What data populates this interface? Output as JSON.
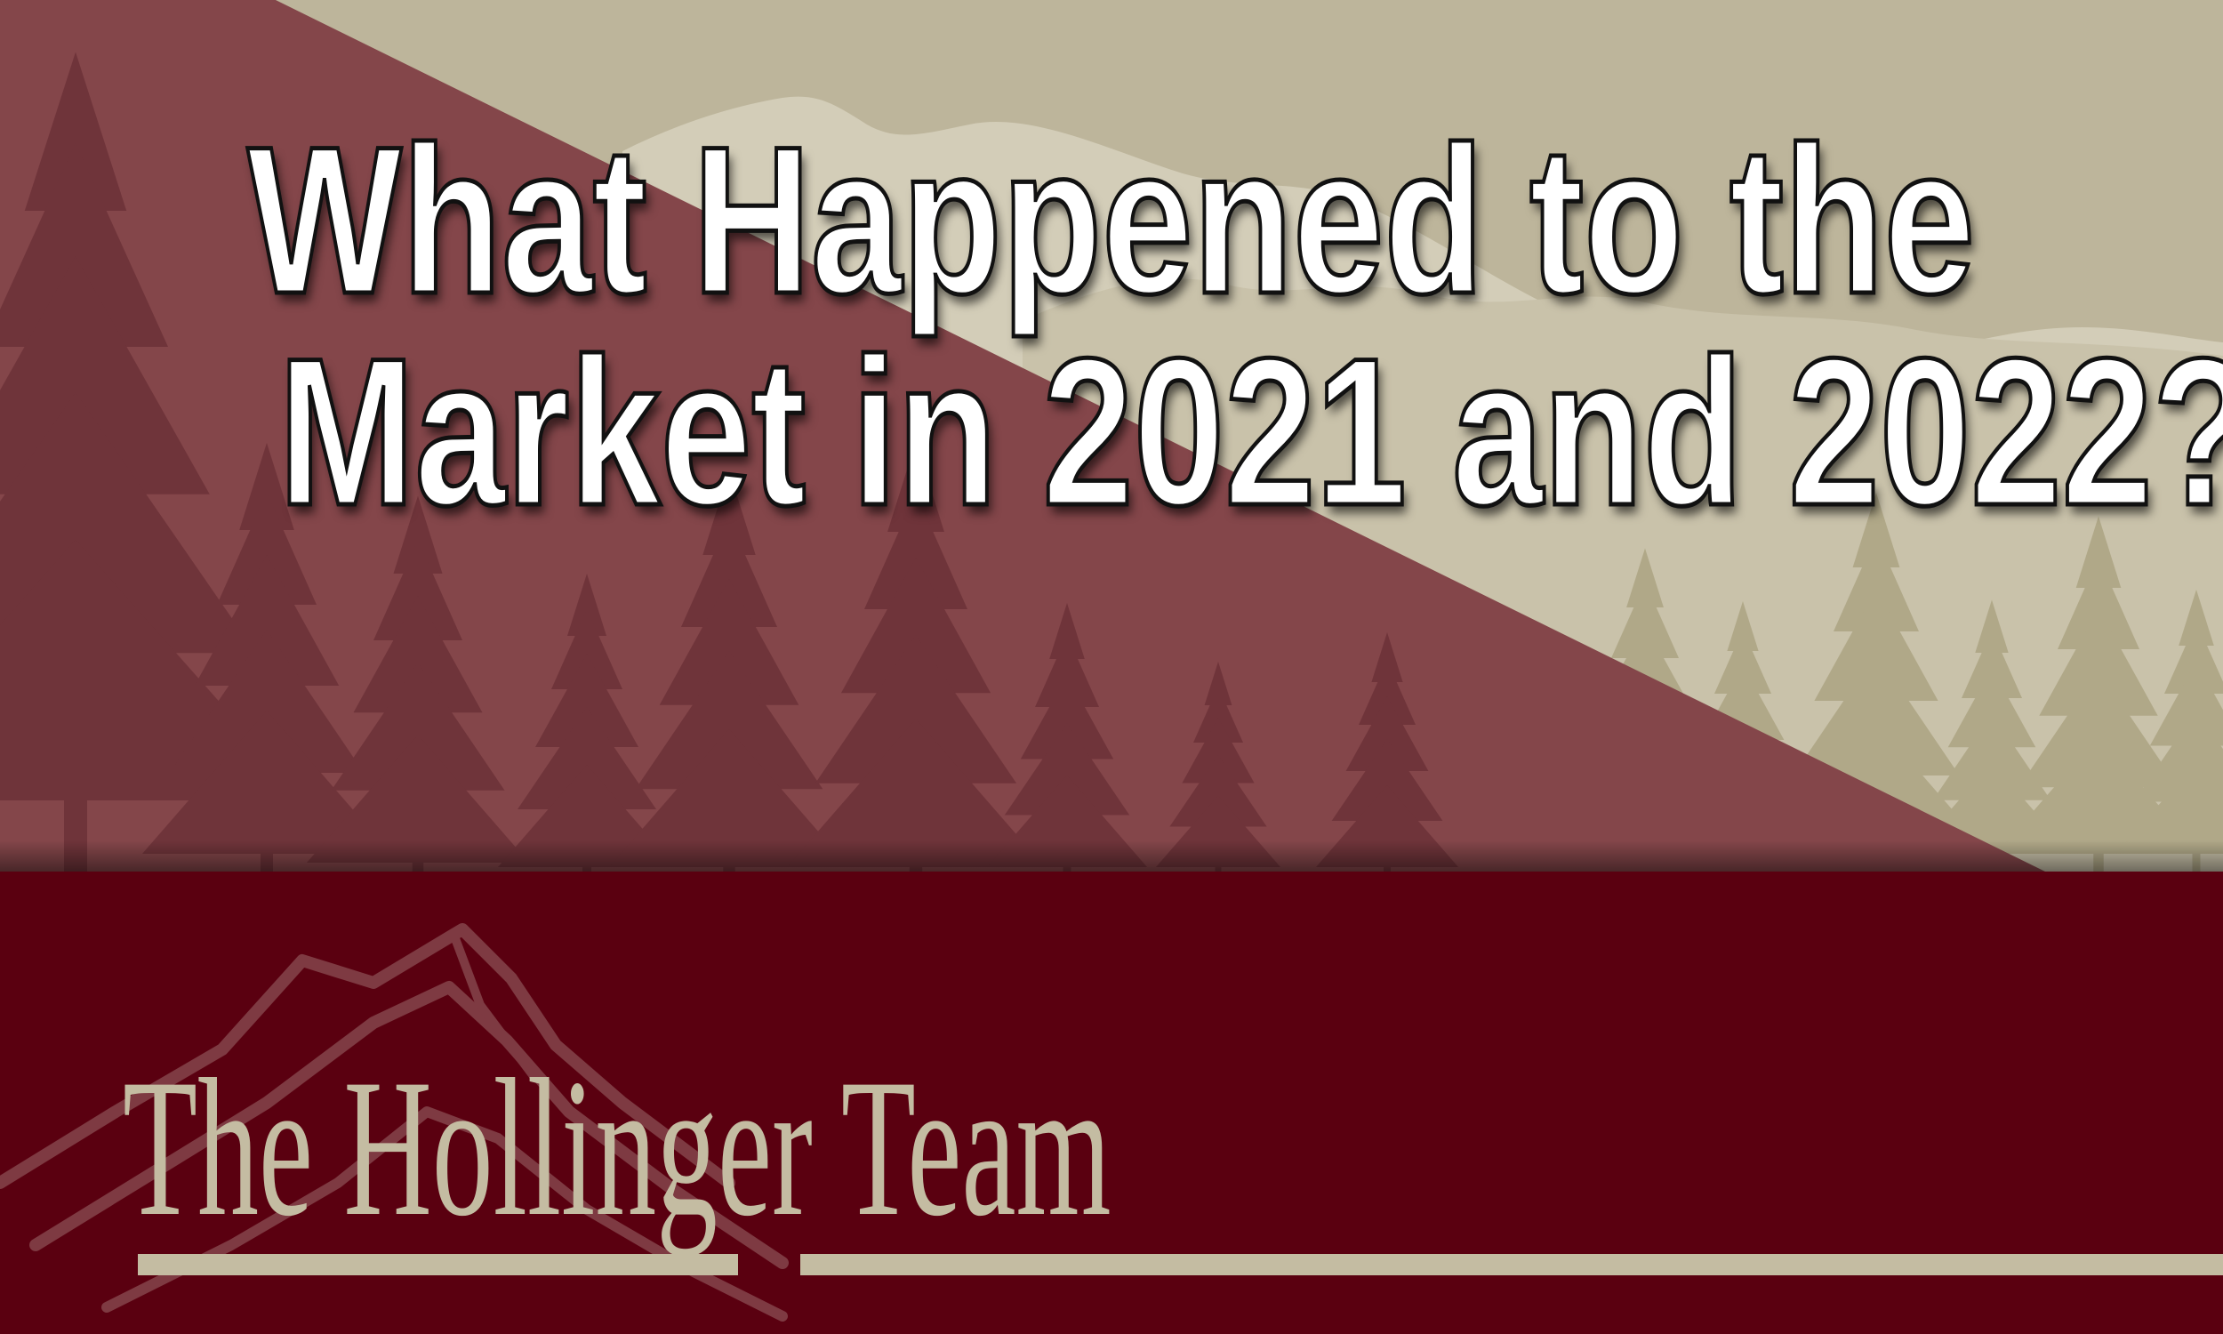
{
  "headline": {
    "line1": "What Happened to the",
    "line2": "Market in 2021 and 2022?"
  },
  "brand": {
    "name": "The Hollinger Team"
  },
  "icons": [
    "pine-tree-icon",
    "mountain-icon"
  ],
  "colors": {
    "maroon_panel": "#84464a",
    "beige_panel": "#bdb59b",
    "footer": "#5a0010",
    "brand_text": "#c4bca2",
    "headline_fill": "#ffffff",
    "headline_stroke": "#111111"
  }
}
